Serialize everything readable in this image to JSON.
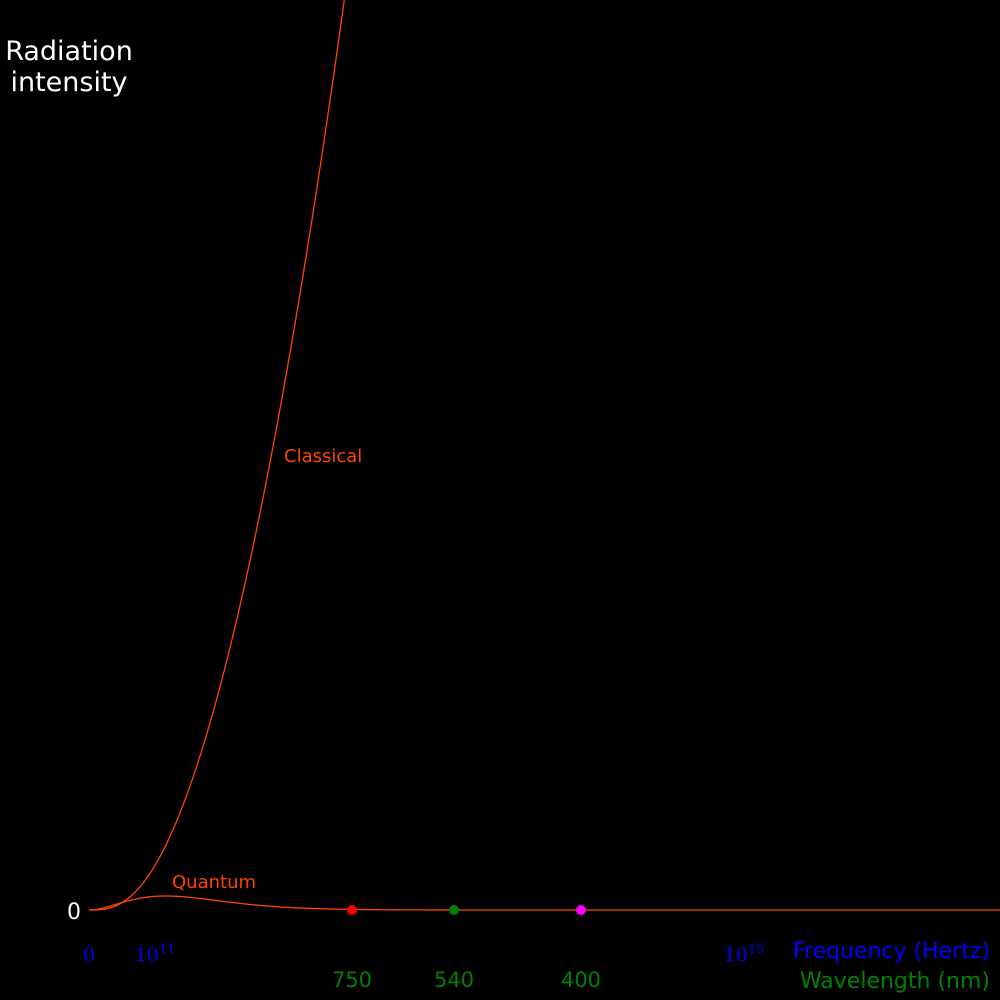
{
  "chart_data": {
    "type": "line",
    "title": "",
    "ylabel": [
      "Radiation",
      "intensity"
    ],
    "y_zero_label": "0",
    "x_axis": {
      "label": "Frequency (Hertz)",
      "scale": "log",
      "tick_labels": [
        {
          "base": "0",
          "exp": "",
          "value": 0
        },
        {
          "base": "10",
          "exp": "11",
          "value": 100000000000.0
        },
        {
          "base": "10",
          "exp": "15",
          "value": 1000000000000000.0
        }
      ]
    },
    "wavelength_axis": {
      "label": "Wavelength (nm)",
      "markers": [
        {
          "label": "750",
          "wavelength_nm": 750,
          "color": "#ff0000"
        },
        {
          "label": "540",
          "wavelength_nm": 540,
          "color": "#008000"
        },
        {
          "label": "400",
          "wavelength_nm": 400,
          "color": "#ff00ff"
        }
      ]
    },
    "series": [
      {
        "name": "Classical",
        "color": "#ff4500",
        "model": "rayleigh-jeans"
      },
      {
        "name": "Quantum",
        "color": "#ff4500",
        "model": "planck"
      }
    ],
    "grid": false,
    "legend": "inline labels"
  },
  "colors": {
    "background": "#000000",
    "curve": "#ff4500",
    "frequency": "#0000ff",
    "wavelength": "#008000",
    "text": "#ffffff"
  }
}
